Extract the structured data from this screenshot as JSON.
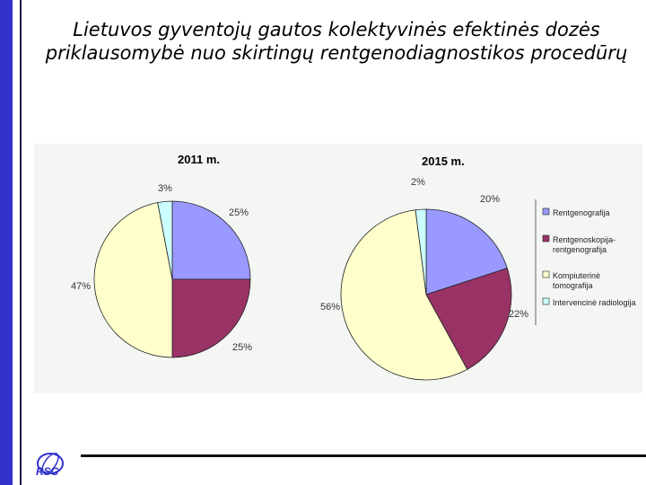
{
  "slide": {
    "title": "Lietuvos gyventojų gautos kolektyvinės efektinės dozės priklausomybė nuo skirtingų rentgenodiagnostikos procedūrų",
    "logo_text": "RSC"
  },
  "colors": {
    "accent_bar": "#3333cc",
    "slice_1": "#9999ff",
    "slice_2": "#993366",
    "slice_3": "#ffffcc",
    "slice_4": "#ccffff"
  },
  "chart_data": [
    {
      "type": "pie",
      "title": "2011 m.",
      "categories": [
        "Rentgenografija",
        "Rentgenoskopija-rentgenografija",
        "Kompiuterinė tomografija",
        "Intervencinė radiologija"
      ],
      "values": [
        25,
        25,
        47,
        3
      ],
      "labels": [
        "25%",
        "25%",
        "47%",
        "3%"
      ]
    },
    {
      "type": "pie",
      "title": "2015 m.",
      "categories": [
        "Rentgenografija",
        "Rentgenoskopija-rentgenografija",
        "Kompiuterinė tomografija",
        "Intervencinė radiologija"
      ],
      "values": [
        20,
        22,
        56,
        2
      ],
      "labels": [
        "20%",
        "22%",
        "56%",
        "2%"
      ],
      "legend": {
        "placement": "right",
        "entries": [
          {
            "lines": [
              "Rentgenografija"
            ]
          },
          {
            "lines": [
              "Rentgenoskopija-",
              "rentgenografija"
            ]
          },
          {
            "lines": [
              "Kompiuterinė",
              "tomografija"
            ]
          },
          {
            "lines": [
              "Intervencinė radiologija"
            ]
          }
        ]
      }
    }
  ]
}
